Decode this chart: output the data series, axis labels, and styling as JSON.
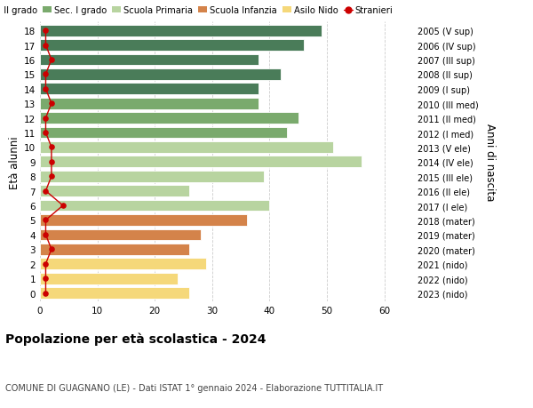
{
  "ages": [
    18,
    17,
    16,
    15,
    14,
    13,
    12,
    11,
    10,
    9,
    8,
    7,
    6,
    5,
    4,
    3,
    2,
    1,
    0
  ],
  "right_labels": [
    "2005 (V sup)",
    "2006 (IV sup)",
    "2007 (III sup)",
    "2008 (II sup)",
    "2009 (I sup)",
    "2010 (III med)",
    "2011 (II med)",
    "2012 (I med)",
    "2013 (V ele)",
    "2014 (IV ele)",
    "2015 (III ele)",
    "2016 (II ele)",
    "2017 (I ele)",
    "2018 (mater)",
    "2019 (mater)",
    "2020 (mater)",
    "2021 (nido)",
    "2022 (nido)",
    "2023 (nido)"
  ],
  "bar_values": [
    49,
    46,
    38,
    42,
    38,
    38,
    45,
    43,
    51,
    56,
    39,
    26,
    40,
    36,
    28,
    26,
    29,
    24,
    26
  ],
  "stranieri_values": [
    1,
    1,
    2,
    1,
    1,
    2,
    1,
    1,
    2,
    2,
    2,
    1,
    4,
    1,
    1,
    2,
    1,
    1,
    1
  ],
  "bar_colors": [
    "#4a7c59",
    "#4a7c59",
    "#4a7c59",
    "#4a7c59",
    "#4a7c59",
    "#7aaa6d",
    "#7aaa6d",
    "#7aaa6d",
    "#b8d4a0",
    "#b8d4a0",
    "#b8d4a0",
    "#b8d4a0",
    "#b8d4a0",
    "#d4834a",
    "#d4834a",
    "#d4834a",
    "#f5d87a",
    "#f5d87a",
    "#f5d87a"
  ],
  "legend_labels": [
    "Sec. II grado",
    "Sec. I grado",
    "Scuola Primaria",
    "Scuola Infanzia",
    "Asilo Nido",
    "Stranieri"
  ],
  "legend_colors": [
    "#4a7c59",
    "#7aaa6d",
    "#b8d4a0",
    "#d4834a",
    "#f5d87a",
    "#cc0000"
  ],
  "ylabel": "Età alunni",
  "right_ylabel": "Anni di nascita",
  "title": "Popolazione per età scolastica - 2024",
  "subtitle": "COMUNE DI GUAGNANO (LE) - Dati ISTAT 1° gennaio 2024 - Elaborazione TUTTITALIA.IT",
  "xlim": [
    0,
    65
  ],
  "xticks": [
    0,
    10,
    20,
    30,
    40,
    50,
    60
  ],
  "bar_height": 0.78,
  "background_color": "#ffffff",
  "grid_color": "#cccccc"
}
